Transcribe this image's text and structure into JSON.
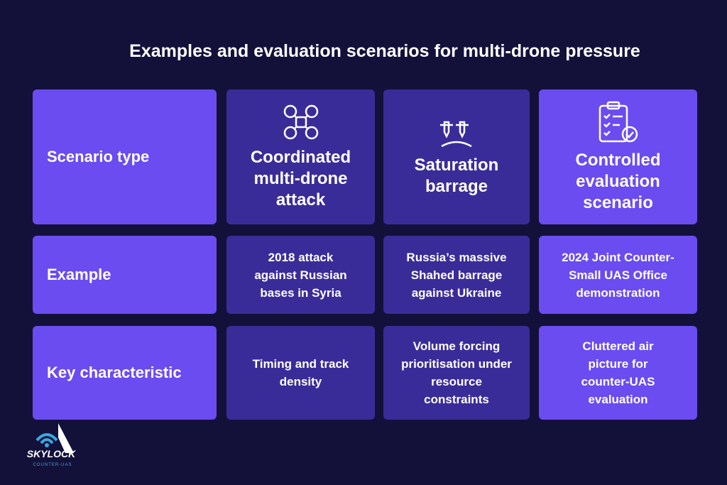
{
  "title": "Examples and evaluation scenarios for multi-drone pressure",
  "table": {
    "header": [
      "Scenario type",
      "Coordinated multi-drone attack",
      "Saturation barrage",
      "Controlled evaluation scenario"
    ],
    "rows": [
      [
        "Example",
        "2018 attack against Russian bases in Syria",
        "Russia’s massive Shahed barrage against Ukraine",
        "2024 Joint Counter-Small UAS Office demonstration"
      ],
      [
        "Key characteristic",
        "Timing and track density",
        "Volume forcing prioritisation under resource constraints",
        "Cluttered air picture for counter-UAS evaluation"
      ]
    ]
  },
  "logo": {
    "name": "SKYLOCK",
    "tagline": "COUNTER-UAS"
  }
}
